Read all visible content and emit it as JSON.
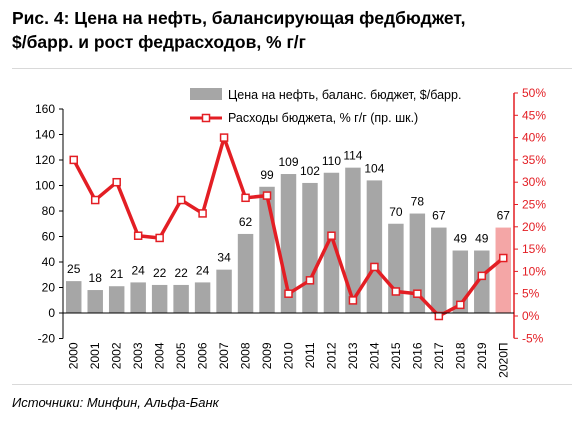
{
  "title_line1": "Рис. 4: Цена на нефть, балансирующая федбюджет,",
  "title_line2": "$/барр. и рост федрасходов, % г/г",
  "source": "Источники: Минфин, Альфа-Банк",
  "chart_data": {
    "type": "bar",
    "categories": [
      "2000",
      "2001",
      "2002",
      "2003",
      "2004",
      "2005",
      "2006",
      "2007",
      "2008",
      "2009",
      "2010",
      "2011",
      "2012",
      "2013",
      "2014",
      "2015",
      "2016",
      "2017",
      "2018",
      "2019",
      "2020П"
    ],
    "series": [
      {
        "name": "Цена на нефть, баланс. бюджет, $/барр.",
        "type": "bar",
        "axis": "left",
        "color": "#a6a6a6",
        "forecast_color": "#f4a6a6",
        "values": [
          25,
          18,
          21,
          24,
          22,
          22,
          24,
          34,
          62,
          99,
          109,
          102,
          110,
          114,
          104,
          70,
          78,
          67,
          49,
          49,
          67
        ],
        "labels": [
          "25",
          "18",
          "21",
          "24",
          "22",
          "22",
          "24",
          "34",
          "62",
          "99",
          "109",
          "102",
          "110",
          "114",
          "104",
          "70",
          "78",
          "67",
          "49",
          "49",
          "67"
        ]
      },
      {
        "name": "Расходы бюджета, % г/г (пр. шк.)",
        "type": "line",
        "axis": "right",
        "color": "#e31e24",
        "values": [
          35,
          26,
          30,
          18,
          17.5,
          26,
          23,
          40,
          26.5,
          27,
          5,
          8,
          18,
          3.5,
          11,
          5.5,
          5,
          0,
          2.5,
          9,
          13
        ]
      }
    ],
    "left_axis": {
      "min": -20,
      "max": 160,
      "ticks": [
        "160",
        "140",
        "120",
        "100",
        "80",
        "60",
        "40",
        "20",
        "0",
        "-20"
      ]
    },
    "right_axis": {
      "min": -5,
      "max": 50,
      "ticks": [
        "50%",
        "45%",
        "40%",
        "35%",
        "30%",
        "25%",
        "20%",
        "15%",
        "10%",
        "5%",
        "0%",
        "-5%"
      ]
    },
    "legend_position": "top-right",
    "grid": false
  }
}
